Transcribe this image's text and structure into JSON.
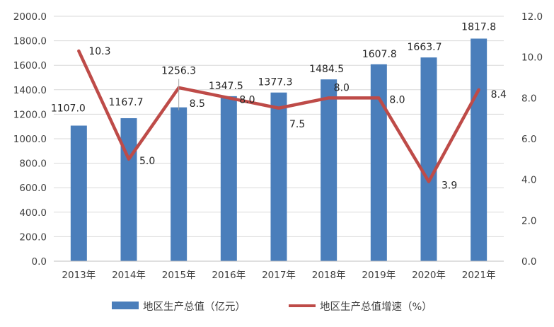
{
  "chart_data": {
    "type": "bar",
    "categories": [
      "2013年",
      "2014年",
      "2015年",
      "2016年",
      "2017年",
      "2018年",
      "2019年",
      "2020年",
      "2021年"
    ],
    "series": [
      {
        "name": "地区生产总值（亿元）",
        "type": "bar",
        "axis": "left",
        "color": "#4A7EBB",
        "values": [
          1107.0,
          1167.7,
          1256.3,
          1347.5,
          1377.3,
          1484.5,
          1607.8,
          1663.7,
          1817.8
        ],
        "labels": [
          "1107.0",
          "1167.7",
          "1256.3",
          "1347.5",
          "1377.3",
          "1484.5",
          "1607.8",
          "1663.7",
          "1817.8"
        ]
      },
      {
        "name": "地区生产总值增速（%）",
        "type": "line",
        "axis": "right",
        "color": "#BE4B48",
        "values": [
          10.3,
          5.0,
          8.5,
          8.0,
          7.5,
          8.0,
          8.0,
          3.9,
          8.4
        ],
        "labels": [
          "10.3",
          "5.0",
          "8.5",
          "8.0",
          "7.5",
          "8.0",
          "8.0",
          "3.9",
          "8.4"
        ]
      }
    ],
    "y_left": {
      "min": 0,
      "max": 2000,
      "step": 200,
      "ticks": [
        "0.0",
        "200.0",
        "400.0",
        "600.0",
        "800.0",
        "1000.0",
        "1200.0",
        "1400.0",
        "1600.0",
        "1800.0",
        "2000.0"
      ]
    },
    "y_right": {
      "min": 0,
      "max": 12,
      "step": 2,
      "ticks": [
        "0.0",
        "2.0",
        "4.0",
        "6.0",
        "8.0",
        "10.0",
        "12.0"
      ]
    },
    "grid": true,
    "legend_position": "bottom"
  }
}
